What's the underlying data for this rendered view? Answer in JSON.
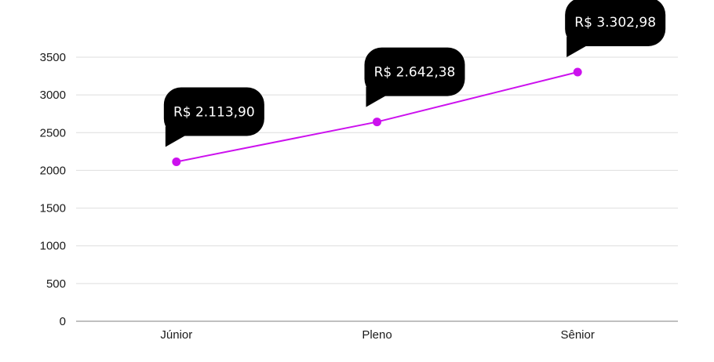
{
  "chart_data": {
    "type": "line",
    "categories": [
      "Júnior",
      "Pleno",
      "Sênior"
    ],
    "values": [
      2113.9,
      2642.38,
      3302.98
    ],
    "data_labels": [
      "R$ 2.113,90",
      "R$ 2.642,38",
      "R$ 3.302,98"
    ],
    "yticks": [
      "0",
      "500",
      "1000",
      "1500",
      "2000",
      "2500",
      "3000",
      "3500"
    ],
    "ylim": [
      0,
      3500
    ],
    "title": "",
    "xlabel": "",
    "ylabel": "",
    "grid": true,
    "legend": "none",
    "line_color": "#cc11ee",
    "label_bg": "#000000",
    "label_color": "#ffffff"
  }
}
